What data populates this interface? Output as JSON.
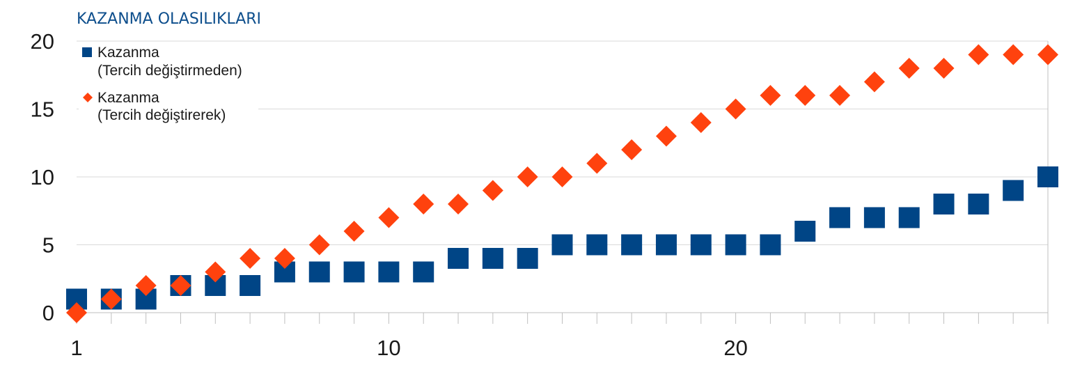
{
  "chart_data": {
    "type": "scatter",
    "title": "KAZANMA OLASILIKLARI",
    "xlabel": "",
    "ylabel": "",
    "x": [
      1,
      2,
      3,
      4,
      5,
      6,
      7,
      8,
      9,
      10,
      11,
      12,
      13,
      14,
      15,
      16,
      17,
      18,
      19,
      20,
      21,
      22,
      23,
      24,
      25,
      26,
      27,
      28,
      29
    ],
    "xlim": [
      1,
      29
    ],
    "ylim": [
      0,
      20
    ],
    "x_ticks": [
      1,
      10,
      20
    ],
    "y_ticks": [
      0,
      5,
      10,
      15,
      20
    ],
    "grid": true,
    "legend_position": "top-left",
    "series": [
      {
        "name": "Kazanma (Tercih değiştirmeden)",
        "label_lines": [
          "Kazanma",
          "(Tercih değiştirmeden)"
        ],
        "marker": "square",
        "color": "#004586",
        "values": [
          1,
          1,
          1,
          2,
          2,
          2,
          3,
          3,
          3,
          3,
          3,
          4,
          4,
          4,
          5,
          5,
          5,
          5,
          5,
          5,
          5,
          6,
          7,
          7,
          7,
          8,
          8,
          9,
          10
        ]
      },
      {
        "name": "Kazanma (Tercih değiştirerek)",
        "label_lines": [
          "Kazanma",
          "(Tercih değiştirerek)"
        ],
        "marker": "diamond",
        "color": "#ff420e",
        "values": [
          0,
          1,
          2,
          2,
          3,
          4,
          4,
          5,
          6,
          7,
          8,
          8,
          9,
          10,
          10,
          11,
          12,
          13,
          14,
          15,
          16,
          16,
          16,
          17,
          18,
          18,
          19,
          19,
          19
        ]
      }
    ]
  }
}
